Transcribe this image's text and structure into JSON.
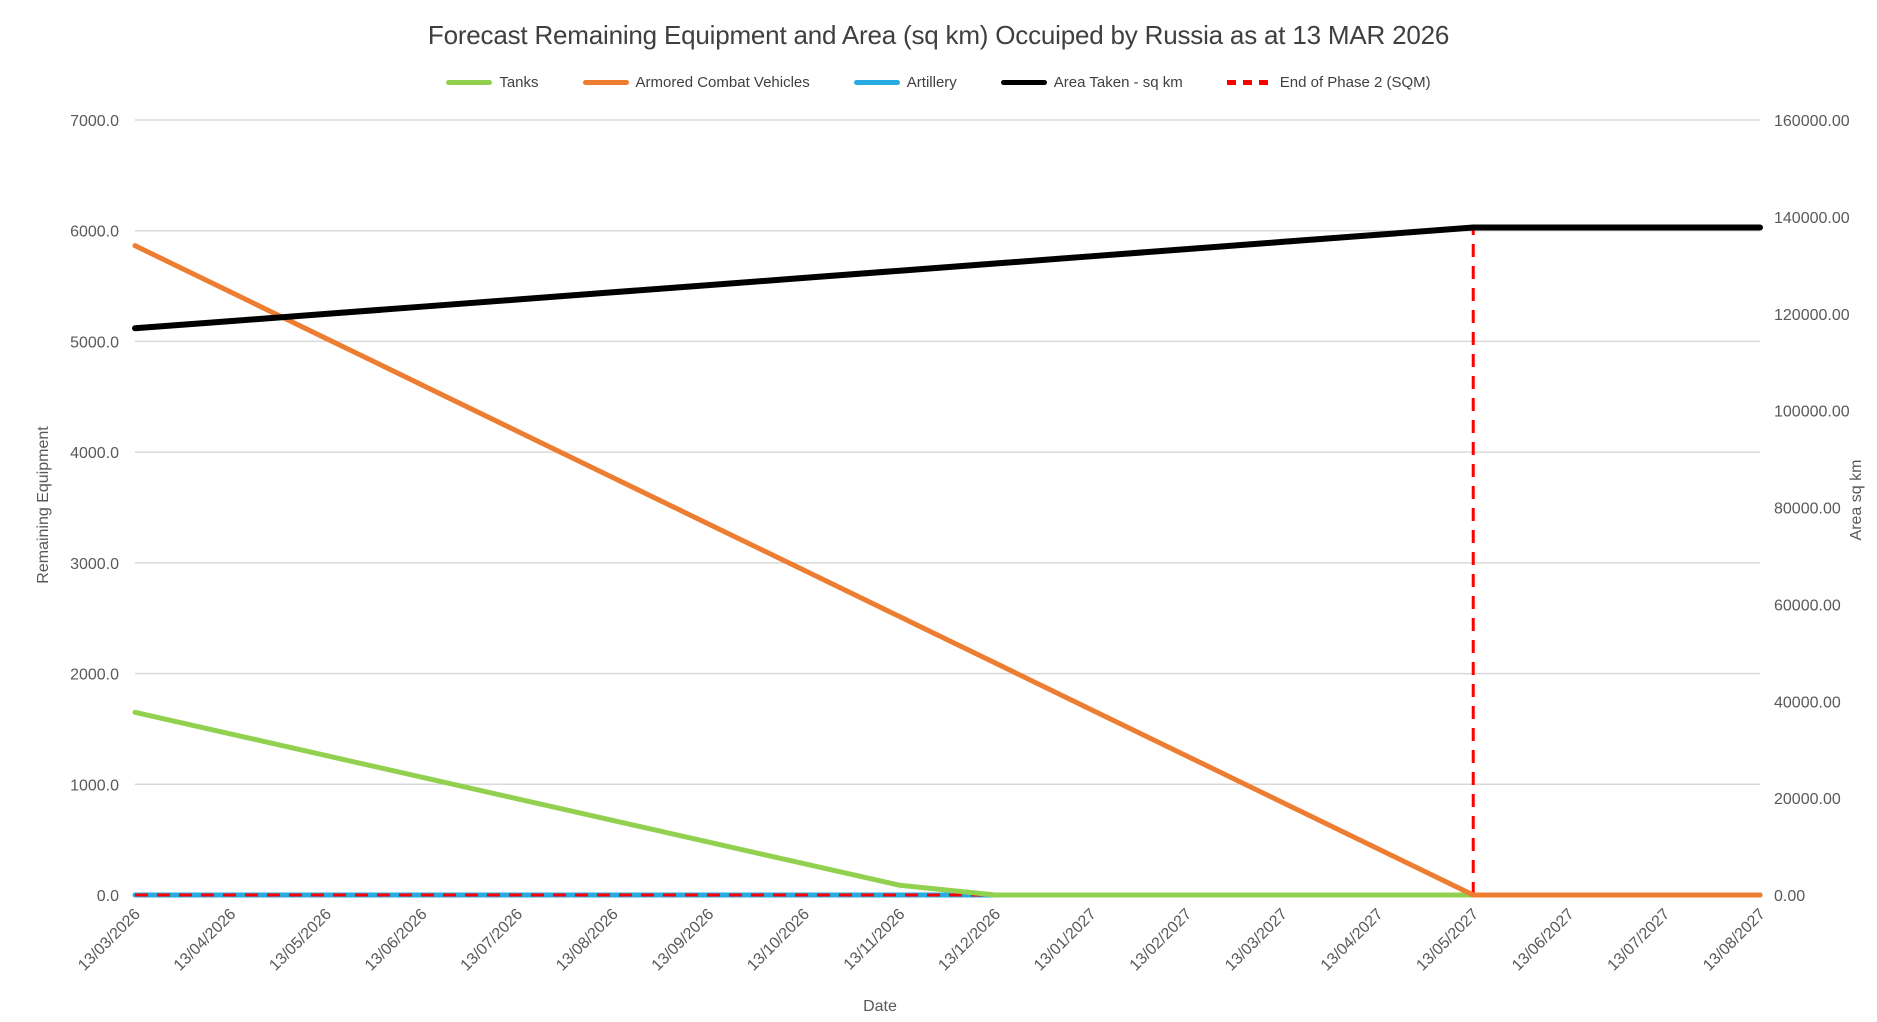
{
  "header": {
    "title": "Forecast Remaining Equipment and Area (sq km) Occuiped by Russia as at 13 MAR 2026"
  },
  "legend": {
    "items": [
      {
        "label": "Tanks",
        "color": "#92D050",
        "dashed": false
      },
      {
        "label": "Armored Combat Vehicles",
        "color": "#ED7D31",
        "dashed": false
      },
      {
        "label": "Artillery",
        "color": "#29ABE2",
        "dashed": false
      },
      {
        "label": "Area Taken - sq km",
        "color": "#000000",
        "dashed": false
      },
      {
        "label": "End of Phase 2 (SQM)",
        "color": "#FF0000",
        "dashed": true
      }
    ]
  },
  "axes": {
    "left": {
      "title": "Remaining Equipment"
    },
    "right": {
      "title": "Area sq km"
    },
    "x": {
      "title": "Date"
    }
  },
  "colors": {
    "gridline": "#D9D9D9",
    "tick_text": "#595959",
    "title_text": "#3F3F3F"
  },
  "chart_data": {
    "type": "line",
    "title": "Forecast Remaining Equipment and Area (sq km) Occuiped by Russia as at 13 MAR 2026",
    "xlabel": "Date",
    "ylabel_left": "Remaining Equipment",
    "ylabel_right": "Area sq km",
    "grid": true,
    "legend_position": "top",
    "ylim_left": [
      0,
      7000
    ],
    "ylim_right": [
      0,
      160000
    ],
    "left_tick_step": 1000,
    "right_tick_step": 20000,
    "left_tick_labels": [
      "0.0",
      "1000.0",
      "2000.0",
      "3000.0",
      "4000.0",
      "5000.0",
      "6000.0",
      "7000.0"
    ],
    "right_tick_labels": [
      "0.00",
      "20000.00",
      "40000.00",
      "60000.00",
      "80000.00",
      "100000.00",
      "120000.00",
      "140000.00",
      "160000.00"
    ],
    "categories": [
      "13/03/2026",
      "13/04/2026",
      "13/05/2026",
      "13/06/2026",
      "13/07/2026",
      "13/08/2026",
      "13/09/2026",
      "13/10/2026",
      "13/11/2026",
      "13/12/2026",
      "13/01/2027",
      "13/02/2027",
      "13/03/2027",
      "13/04/2027",
      "13/05/2027",
      "13/06/2027",
      "13/07/2027",
      "13/08/2027"
    ],
    "series": [
      {
        "name": "Tanks",
        "axis": "left",
        "color": "#92D050",
        "dashed": false,
        "width": 5,
        "values": [
          1650,
          1455,
          1259,
          1064,
          869,
          673,
          478,
          283,
          88,
          0,
          0,
          0,
          0,
          0,
          0,
          0,
          0,
          0
        ]
      },
      {
        "name": "Armored Combat Vehicles",
        "axis": "left",
        "color": "#ED7D31",
        "dashed": false,
        "width": 5,
        "values": [
          5865,
          5446,
          5027,
          4608,
          4189,
          3770,
          3351,
          2933,
          2514,
          2095,
          1676,
          1257,
          838,
          419,
          0,
          0,
          0,
          0
        ]
      },
      {
        "name": "Artillery",
        "axis": "left",
        "color": "#29ABE2",
        "dashed": false,
        "width": 5,
        "values": [
          0,
          0,
          0,
          0,
          0,
          0,
          0,
          0,
          0,
          0,
          0,
          0,
          0,
          0,
          0,
          0,
          0,
          0
        ]
      },
      {
        "name": "Area Taken - sq km",
        "axis": "right",
        "color": "#000000",
        "dashed": false,
        "width": 6,
        "values": [
          117000,
          118486,
          119971,
          121457,
          122943,
          124429,
          125914,
          127400,
          128886,
          130371,
          131857,
          133343,
          134829,
          136314,
          137800,
          137800,
          137800,
          137800
        ]
      },
      {
        "name": "End of Phase 2 (SQM)",
        "axis": "right",
        "color": "#FF0000",
        "dashed": true,
        "width": 3,
        "render": "baseline-and-spike",
        "baseline_value": 0,
        "spike_x": "13/05/2027",
        "spike_value": 137800,
        "values": [
          0,
          0,
          0,
          0,
          0,
          0,
          0,
          0,
          0,
          0,
          0,
          0,
          0,
          0,
          137800,
          0,
          0,
          0
        ]
      }
    ]
  }
}
